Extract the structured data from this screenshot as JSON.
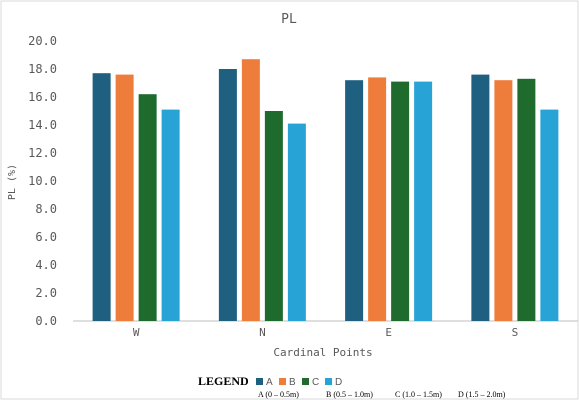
{
  "chart_data": {
    "type": "bar",
    "title": "PL",
    "xlabel": "Cardinal Points",
    "ylabel": "PL (%)",
    "categories": [
      "W",
      "N",
      "E",
      "S"
    ],
    "ylim": [
      0,
      20
    ],
    "yticks": [
      "0.0",
      "2.0",
      "4.0",
      "6.0",
      "8.0",
      "10.0",
      "12.0",
      "14.0",
      "16.0",
      "18.0",
      "20.0"
    ],
    "grid": false,
    "series": [
      {
        "name": "A",
        "color": "#1f5f7f",
        "values": [
          17.7,
          18.0,
          17.2,
          17.6
        ]
      },
      {
        "name": "B",
        "color": "#ee7d3c",
        "values": [
          17.6,
          18.7,
          17.4,
          17.2
        ]
      },
      {
        "name": "C",
        "color": "#1f6b2e",
        "values": [
          16.2,
          15.0,
          17.1,
          17.3
        ]
      },
      {
        "name": "D",
        "color": "#27a3d6",
        "values": [
          15.1,
          14.1,
          17.1,
          15.1
        ]
      }
    ],
    "legend": {
      "placement": "bottom",
      "heading": "LEGEND",
      "notes": [
        "A (0 – 0.5m)",
        "B (0.5 – 1.0m)",
        "C (1.0 – 1.5m)",
        "D (1.5 – 2.0m)"
      ]
    }
  }
}
